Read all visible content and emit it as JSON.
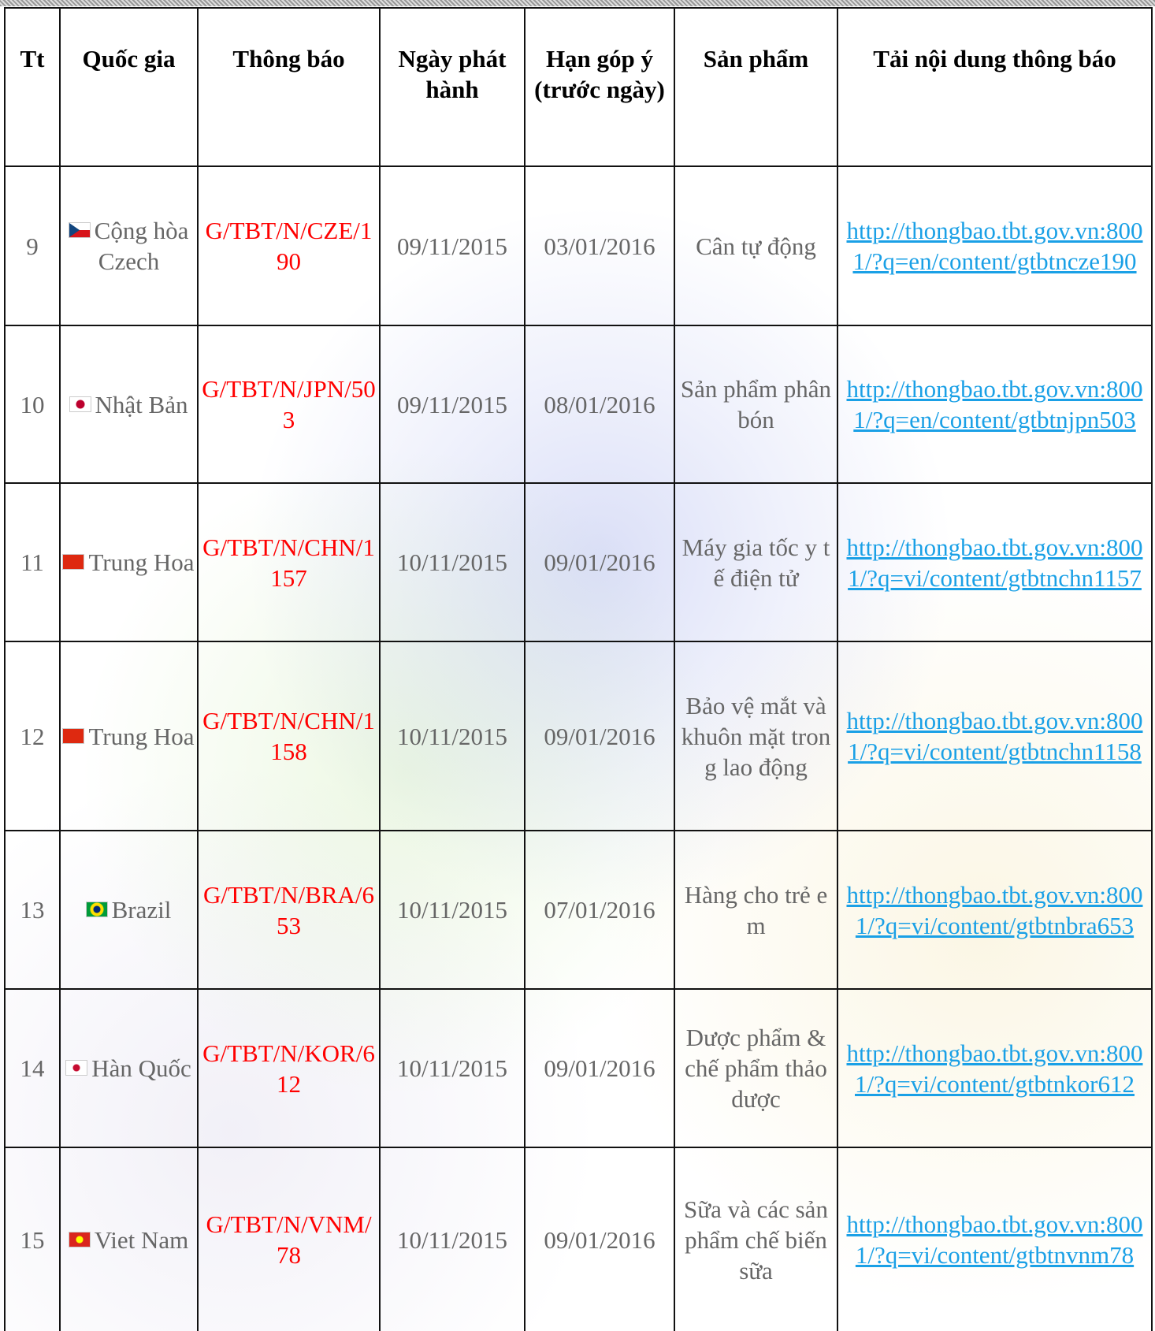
{
  "table": {
    "header": [
      "Tt",
      "Quốc gia",
      "Thông báo",
      "Ngày phát hành",
      "Hạn góp ý (trước ngày)",
      "Sản phẩm",
      "Tải nội dung thông báo"
    ],
    "rows": [
      [
        "9",
        "Cộng hòa Czech",
        "G/TBT/N/CZE/190",
        "09/11/2015",
        "03/01/2016",
        "Cân tự động",
        "http://thongbao.tbt.gov.vn:8001/?q=en/content/gtbtncze190"
      ],
      [
        "10",
        "Nhật Bản",
        "G/TBT/N/JPN/503",
        "09/11/2015",
        "08/01/2016",
        "Sản phẩm phân bón",
        "http://thongbao.tbt.gov.vn:8001/?q=en/content/gtbtnjpn503"
      ],
      [
        "11",
        "Trung Hoa",
        "G/TBT/N/CHN/1157",
        "10/11/2015",
        "09/01/2016",
        "Máy gia tốc y tế điện tử",
        "http://thongbao.tbt.gov.vn:8001/?q=vi/content/gtbtnchn1157"
      ],
      [
        "12",
        "Trung Hoa",
        "G/TBT/N/CHN/1158",
        "10/11/2015",
        "09/01/2016",
        "Bảo vệ mắt và khuôn mặt trong lao động",
        "http://thongbao.tbt.gov.vn:8001/?q=vi/content/gtbtnchn1158"
      ],
      [
        "13",
        "Brazil",
        "G/TBT/N/BRA/653",
        "10/11/2015",
        "07/01/2016",
        "Hàng cho trẻ em",
        "http://thongbao.tbt.gov.vn:8001/?q=vi/content/gtbtnbra653"
      ],
      [
        "14",
        "Hàn Quốc",
        "G/TBT/N/KOR/612",
        "10/11/2015",
        "09/01/2016",
        "Dược phẩm & chế phẩm thảo dược",
        "http://thongbao.tbt.gov.vn:8001/?q=vi/content/gtbtnkor612"
      ],
      [
        "15",
        "Viet Nam",
        "G/TBT/N/VNM/78",
        "10/11/2015",
        "09/01/2016",
        "Sữa và các sản phẩm chế biến sữa",
        "http://thongbao.tbt.gov.vn:8001/?q=vi/content/gtbtnvnm78"
      ]
    ]
  }
}
